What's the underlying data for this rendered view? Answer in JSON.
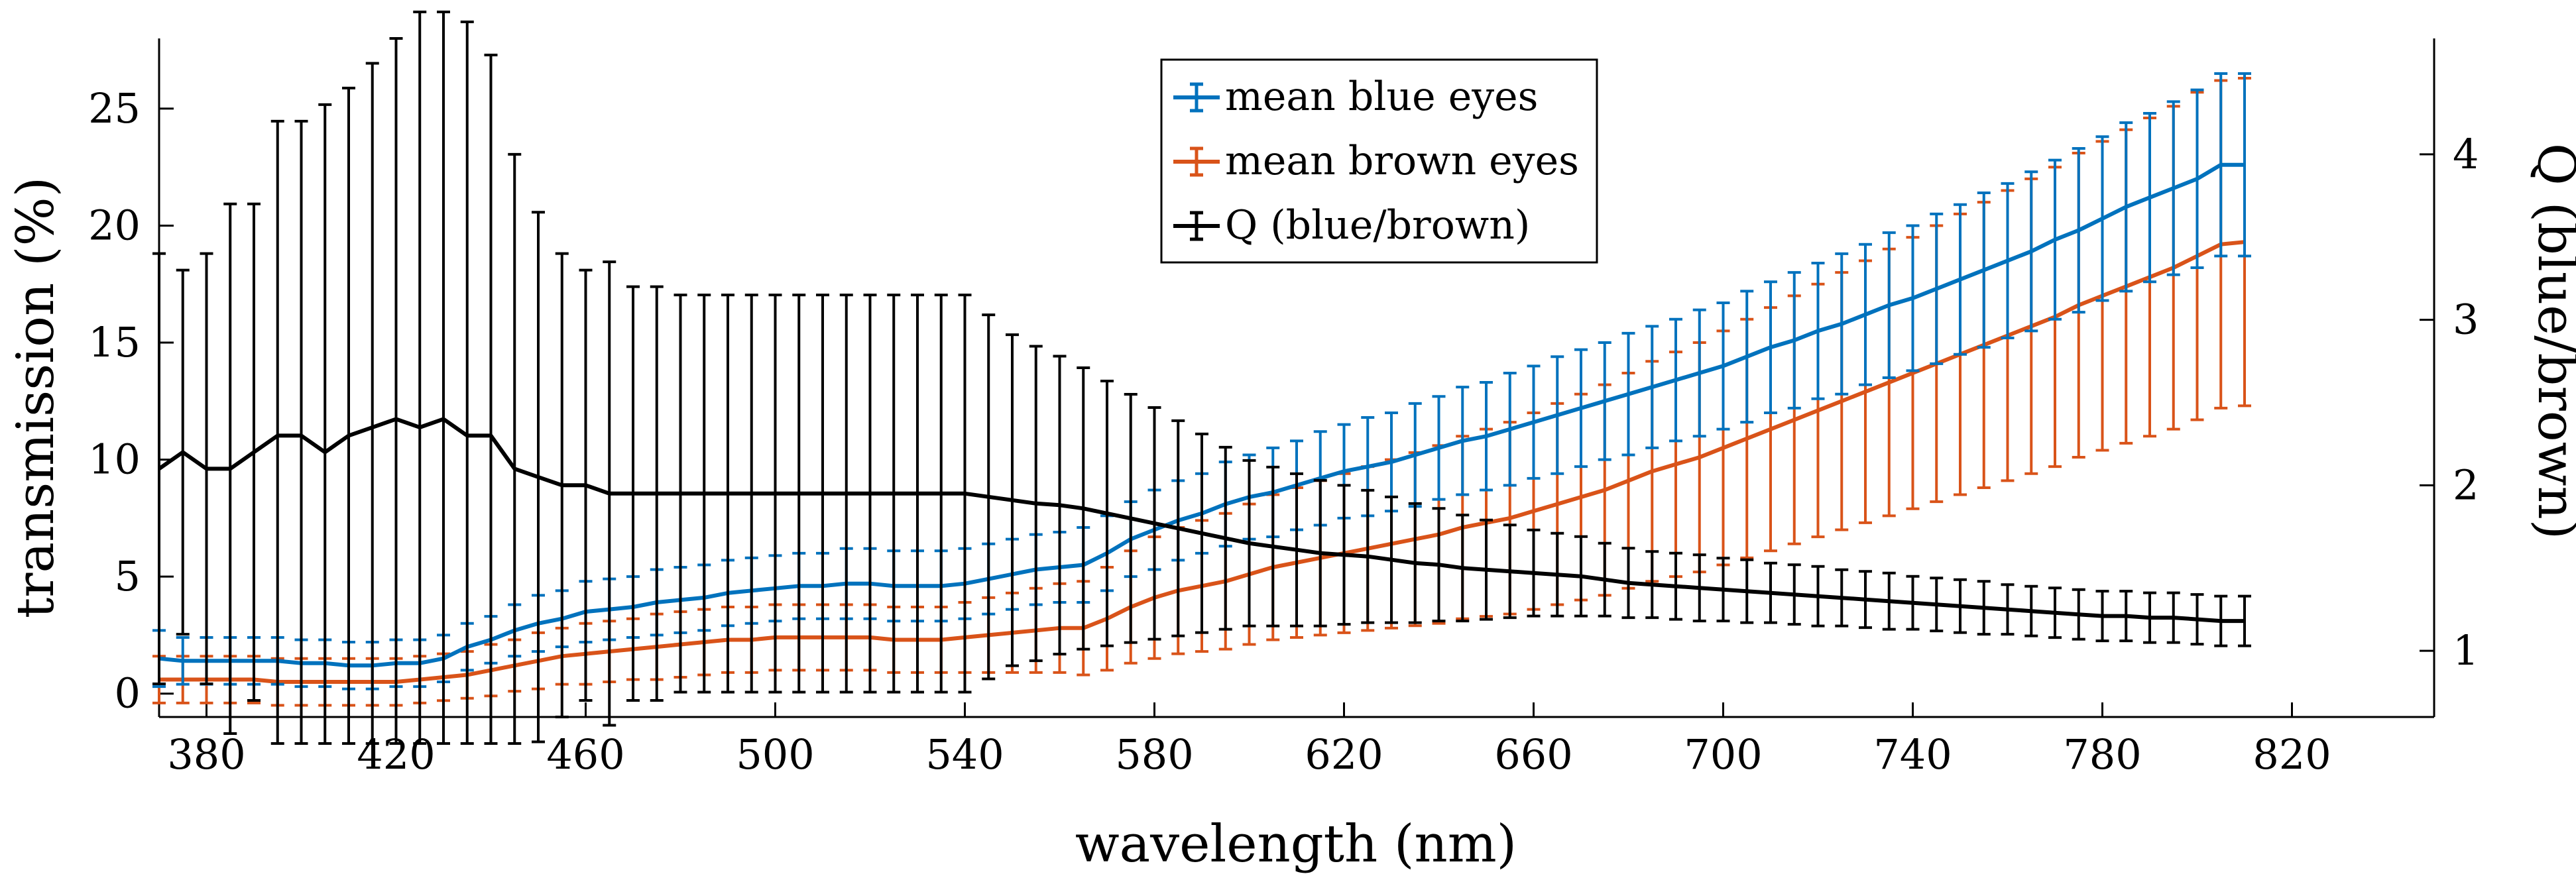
{
  "chart_data": {
    "type": "line",
    "xlabel": "wavelength (nm)",
    "ylabel_left": "transmission (%)",
    "ylabel_right": "Q (blue/brown)",
    "xlim": [
      370,
      850
    ],
    "ylim_left": [
      -1,
      28
    ],
    "ylim_right": [
      0.6,
      4.7
    ],
    "x_ticks": [
      380,
      420,
      460,
      500,
      540,
      580,
      620,
      660,
      700,
      740,
      780,
      820
    ],
    "y_left_ticks": [
      0,
      5,
      10,
      15,
      20,
      25
    ],
    "y_right_ticks": [
      1,
      2,
      3,
      4
    ],
    "grid": false,
    "legend_position": "top-center",
    "series": [
      {
        "name": "mean blue eyes",
        "axis": "left",
        "color": "#0072BD",
        "x_start": 370,
        "x_step": 5,
        "values": [
          1.5,
          1.4,
          1.4,
          1.4,
          1.4,
          1.4,
          1.3,
          1.3,
          1.2,
          1.2,
          1.3,
          1.3,
          1.5,
          2.0,
          2.3,
          2.7,
          3.0,
          3.2,
          3.5,
          3.6,
          3.7,
          3.9,
          4.0,
          4.1,
          4.3,
          4.4,
          4.5,
          4.6,
          4.6,
          4.7,
          4.7,
          4.6,
          4.6,
          4.6,
          4.7,
          4.9,
          5.1,
          5.3,
          5.4,
          5.5,
          6.0,
          6.6,
          7.0,
          7.4,
          7.7,
          8.1,
          8.4,
          8.6,
          8.9,
          9.2,
          9.5,
          9.7,
          9.9,
          10.2,
          10.5,
          10.8,
          11.0,
          11.3,
          11.6,
          11.9,
          12.2,
          12.5,
          12.8,
          13.1,
          13.4,
          13.7,
          14.0,
          14.4,
          14.8,
          15.1,
          15.5,
          15.8,
          16.2,
          16.6,
          16.9,
          17.3,
          17.7,
          18.1,
          18.5,
          18.9,
          19.4,
          19.8,
          20.3,
          20.8,
          21.2,
          21.6,
          22.0,
          22.6,
          22.6
        ],
        "err": [
          1.2,
          1.0,
          1.0,
          1.0,
          1.0,
          1.0,
          1.0,
          1.0,
          1.0,
          1.0,
          1.0,
          1.0,
          1.0,
          1.0,
          1.0,
          1.1,
          1.2,
          1.2,
          1.3,
          1.3,
          1.3,
          1.4,
          1.4,
          1.4,
          1.4,
          1.4,
          1.4,
          1.4,
          1.4,
          1.5,
          1.5,
          1.5,
          1.5,
          1.5,
          1.5,
          1.5,
          1.5,
          1.5,
          1.5,
          1.6,
          1.6,
          1.6,
          1.7,
          1.7,
          1.7,
          1.8,
          1.8,
          1.9,
          1.9,
          2.0,
          2.0,
          2.1,
          2.1,
          2.2,
          2.2,
          2.3,
          2.3,
          2.4,
          2.4,
          2.5,
          2.5,
          2.5,
          2.6,
          2.6,
          2.6,
          2.7,
          2.7,
          2.8,
          2.8,
          2.9,
          2.9,
          3.0,
          3.0,
          3.1,
          3.1,
          3.2,
          3.2,
          3.3,
          3.3,
          3.4,
          3.4,
          3.5,
          3.5,
          3.6,
          3.6,
          3.7,
          3.8,
          3.9,
          3.9
        ]
      },
      {
        "name": "mean brown eyes",
        "axis": "left",
        "color": "#D95319",
        "x_start": 370,
        "x_step": 5,
        "values": [
          0.6,
          0.6,
          0.6,
          0.6,
          0.6,
          0.5,
          0.5,
          0.5,
          0.5,
          0.5,
          0.5,
          0.6,
          0.7,
          0.8,
          1.0,
          1.2,
          1.4,
          1.6,
          1.7,
          1.8,
          1.9,
          2.0,
          2.1,
          2.2,
          2.3,
          2.3,
          2.4,
          2.4,
          2.4,
          2.4,
          2.4,
          2.3,
          2.3,
          2.3,
          2.4,
          2.5,
          2.6,
          2.7,
          2.8,
          2.8,
          3.2,
          3.7,
          4.1,
          4.4,
          4.6,
          4.8,
          5.1,
          5.4,
          5.6,
          5.8,
          6.0,
          6.2,
          6.4,
          6.6,
          6.8,
          7.1,
          7.3,
          7.5,
          7.8,
          8.1,
          8.4,
          8.7,
          9.1,
          9.5,
          9.8,
          10.1,
          10.5,
          10.9,
          11.3,
          11.7,
          12.1,
          12.5,
          12.9,
          13.3,
          13.7,
          14.1,
          14.5,
          14.9,
          15.3,
          15.7,
          16.1,
          16.6,
          17.0,
          17.4,
          17.8,
          18.2,
          18.7,
          19.2,
          19.3
        ],
        "err": [
          1.0,
          1.0,
          1.0,
          1.0,
          1.0,
          1.0,
          1.0,
          1.0,
          1.0,
          1.0,
          1.0,
          1.0,
          1.0,
          1.0,
          1.1,
          1.1,
          1.2,
          1.2,
          1.3,
          1.3,
          1.3,
          1.4,
          1.4,
          1.4,
          1.4,
          1.4,
          1.4,
          1.4,
          1.4,
          1.4,
          1.4,
          1.4,
          1.4,
          1.4,
          1.5,
          1.6,
          1.7,
          1.8,
          1.9,
          2.0,
          2.2,
          2.4,
          2.6,
          2.7,
          2.8,
          2.9,
          3.0,
          3.1,
          3.2,
          3.3,
          3.4,
          3.5,
          3.6,
          3.7,
          3.8,
          3.9,
          4.0,
          4.1,
          4.2,
          4.3,
          4.4,
          4.5,
          4.6,
          4.7,
          4.8,
          4.9,
          5.0,
          5.1,
          5.2,
          5.3,
          5.4,
          5.5,
          5.6,
          5.7,
          5.8,
          5.9,
          6.0,
          6.1,
          6.2,
          6.3,
          6.4,
          6.5,
          6.6,
          6.7,
          6.8,
          6.9,
          7.0,
          7.0,
          7.0
        ]
      },
      {
        "name": "Q (blue/brown)",
        "axis": "right",
        "color": "#000000",
        "x_start": 370,
        "x_step": 5,
        "values": [
          2.1,
          2.2,
          2.1,
          2.1,
          2.2,
          2.3,
          2.3,
          2.2,
          2.3,
          2.35,
          2.4,
          2.35,
          2.4,
          2.3,
          2.3,
          2.1,
          2.05,
          2.0,
          2.0,
          1.95,
          1.95,
          1.95,
          1.95,
          1.95,
          1.95,
          1.95,
          1.95,
          1.95,
          1.95,
          1.95,
          1.95,
          1.95,
          1.95,
          1.95,
          1.95,
          1.93,
          1.91,
          1.89,
          1.88,
          1.86,
          1.83,
          1.8,
          1.77,
          1.74,
          1.71,
          1.68,
          1.65,
          1.63,
          1.61,
          1.59,
          1.58,
          1.57,
          1.55,
          1.53,
          1.52,
          1.5,
          1.49,
          1.48,
          1.47,
          1.46,
          1.45,
          1.43,
          1.41,
          1.4,
          1.39,
          1.38,
          1.37,
          1.36,
          1.35,
          1.34,
          1.33,
          1.32,
          1.31,
          1.3,
          1.29,
          1.28,
          1.27,
          1.26,
          1.25,
          1.24,
          1.23,
          1.22,
          1.21,
          1.21,
          1.2,
          1.2,
          1.19,
          1.18,
          1.18
        ],
        "err": [
          1.3,
          1.1,
          1.3,
          1.6,
          1.5,
          1.9,
          1.9,
          2.1,
          2.1,
          2.2,
          2.3,
          2.6,
          2.7,
          2.5,
          2.3,
          1.9,
          1.6,
          1.4,
          1.3,
          1.4,
          1.25,
          1.25,
          1.2,
          1.2,
          1.2,
          1.2,
          1.2,
          1.2,
          1.2,
          1.2,
          1.2,
          1.2,
          1.2,
          1.2,
          1.2,
          1.1,
          1.0,
          0.95,
          0.9,
          0.85,
          0.8,
          0.75,
          0.7,
          0.65,
          0.6,
          0.55,
          0.5,
          0.48,
          0.46,
          0.44,
          0.42,
          0.4,
          0.38,
          0.36,
          0.34,
          0.32,
          0.3,
          0.28,
          0.26,
          0.25,
          0.24,
          0.22,
          0.21,
          0.2,
          0.2,
          0.2,
          0.19,
          0.19,
          0.18,
          0.18,
          0.18,
          0.17,
          0.17,
          0.17,
          0.16,
          0.16,
          0.16,
          0.16,
          0.15,
          0.15,
          0.15,
          0.15,
          0.15,
          0.15,
          0.15,
          0.15,
          0.15,
          0.15,
          0.15
        ]
      }
    ]
  }
}
